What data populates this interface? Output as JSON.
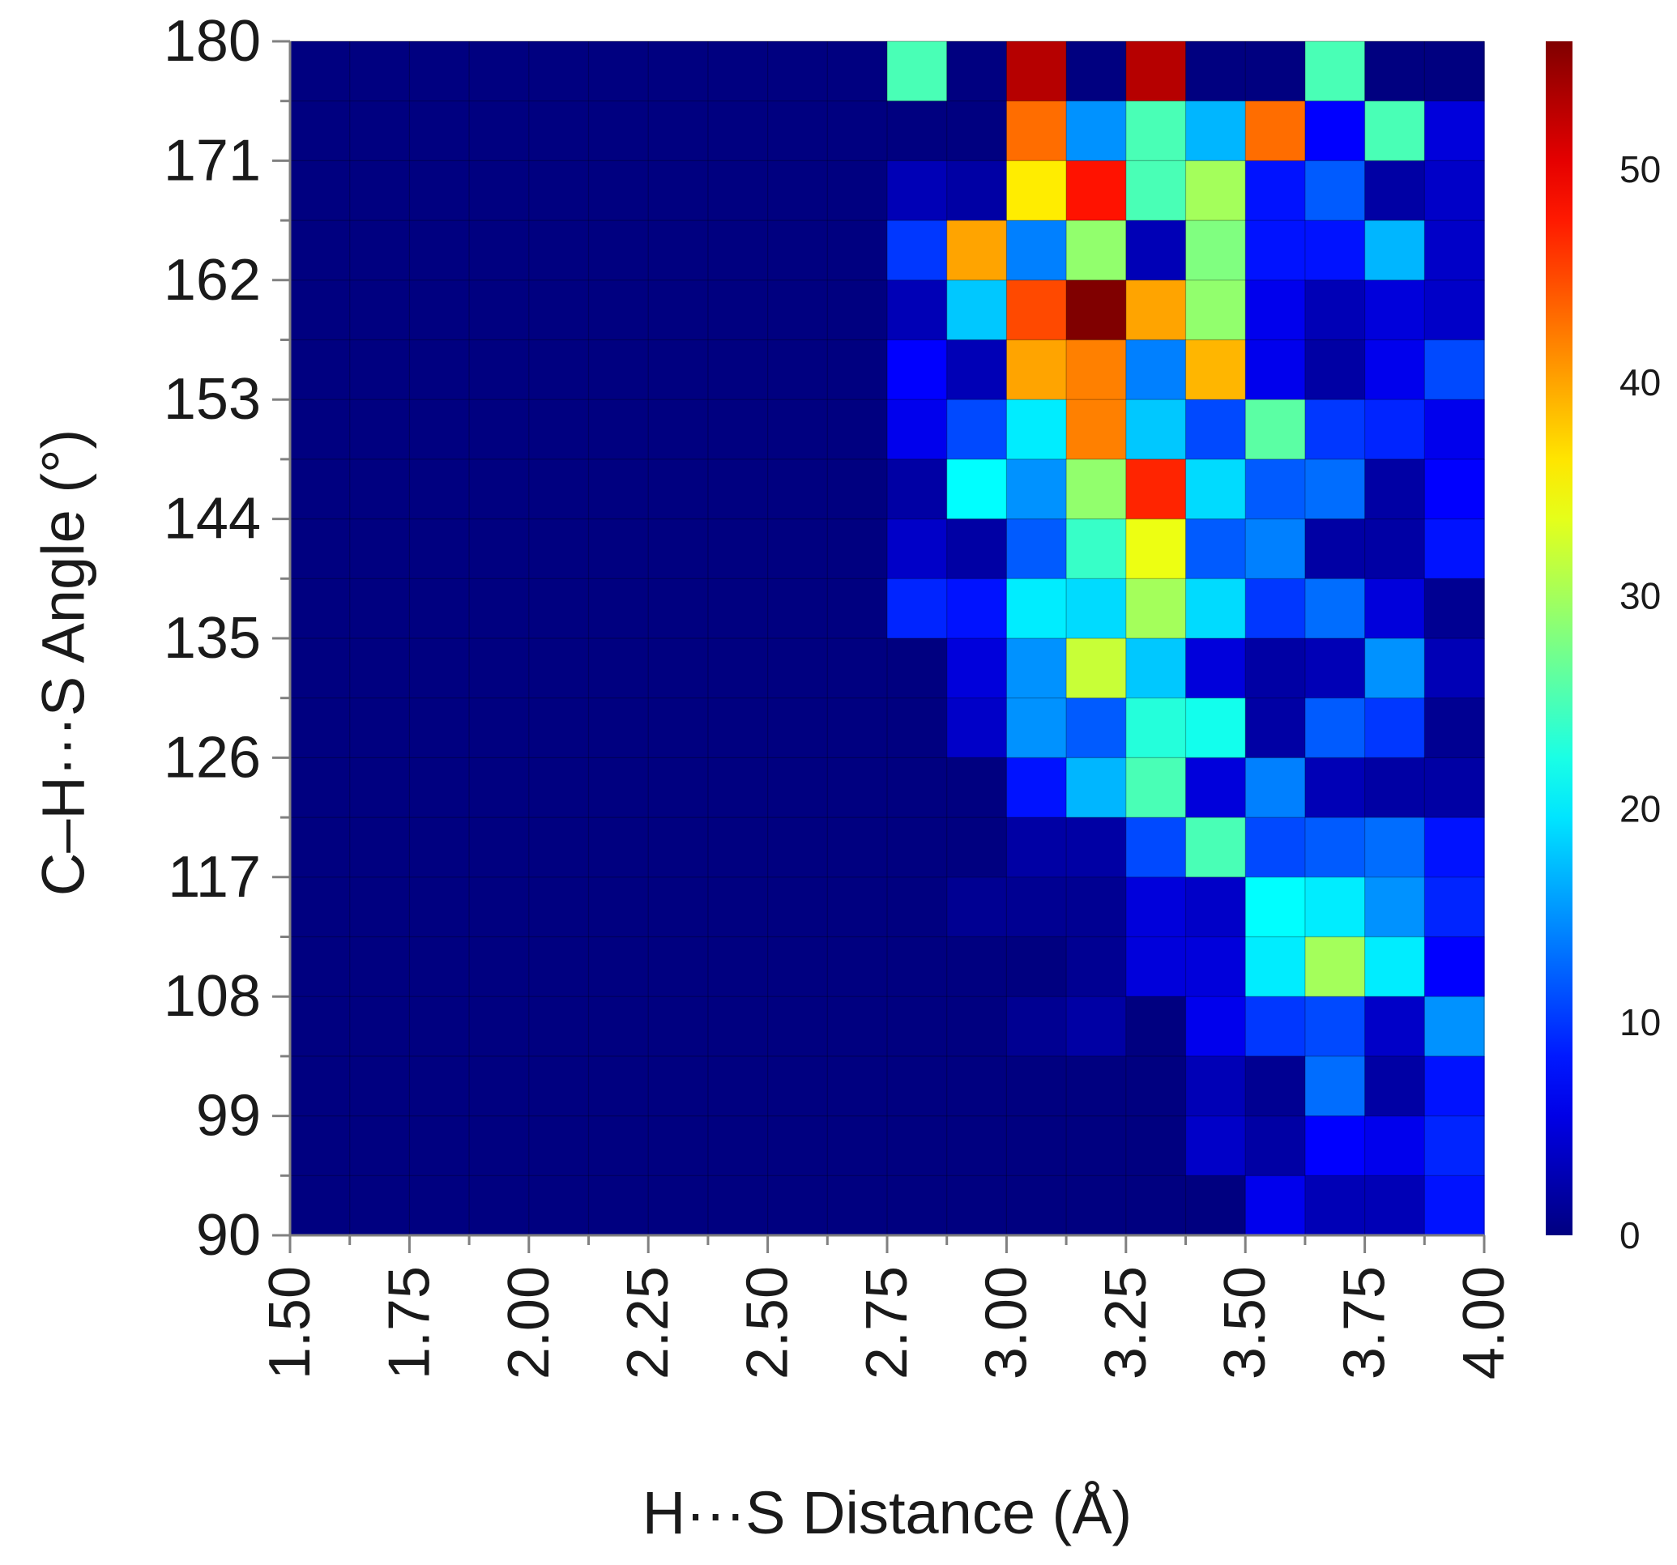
{
  "chart_data": {
    "type": "heatmap",
    "title": "",
    "xlabel": "H···S Distance (Å)",
    "ylabel": "C–H···S Angle (°)",
    "xlim": [
      1.5,
      4.0
    ],
    "ylim": [
      90,
      180
    ],
    "x_ticks": [
      "1.50",
      "1.75",
      "2.00",
      "2.25",
      "2.50",
      "2.75",
      "3.00",
      "3.25",
      "3.50",
      "3.75",
      "4.00"
    ],
    "y_ticks": [
      "90",
      "99",
      "108",
      "117",
      "126",
      "135",
      "144",
      "153",
      "162",
      "171",
      "180"
    ],
    "x_bins": 20,
    "y_bins": 20,
    "colorbar": {
      "range": [
        0,
        56
      ],
      "ticks": [
        "0",
        "10",
        "20",
        "30",
        "40",
        "50"
      ],
      "colormap": "jet"
    },
    "grid": true,
    "rows_top_to_bottom": [
      [
        0,
        0,
        0,
        0,
        0,
        0,
        0,
        0,
        0,
        0,
        25,
        0,
        53,
        0,
        53,
        0,
        0,
        25,
        0,
        0
      ],
      [
        0,
        0,
        0,
        0,
        0,
        0,
        0,
        0,
        0,
        0,
        0,
        0,
        43,
        15,
        25,
        17,
        43,
        7,
        25,
        5
      ],
      [
        0,
        0,
        0,
        0,
        0,
        0,
        0,
        0,
        0,
        0,
        3,
        2,
        36,
        48,
        25,
        30,
        8,
        12,
        2,
        4
      ],
      [
        0,
        0,
        0,
        0,
        0,
        0,
        0,
        0,
        0,
        0,
        10,
        40,
        14,
        29,
        3,
        28,
        8,
        8,
        17,
        4
      ],
      [
        0,
        0,
        0,
        0,
        0,
        0,
        0,
        0,
        0,
        0,
        3,
        18,
        45,
        56,
        40,
        29,
        6,
        3,
        5,
        4
      ],
      [
        0,
        0,
        0,
        0,
        0,
        0,
        0,
        0,
        0,
        0,
        7,
        3,
        40,
        42,
        14,
        39,
        6,
        2,
        6,
        11
      ],
      [
        0,
        0,
        0,
        0,
        0,
        0,
        0,
        0,
        0,
        0,
        6,
        11,
        20,
        42,
        18,
        11,
        26,
        10,
        9,
        6
      ],
      [
        0,
        0,
        0,
        0,
        0,
        0,
        0,
        0,
        0,
        0,
        2,
        21,
        15,
        29,
        47,
        19,
        12,
        13,
        2,
        7
      ],
      [
        0,
        0,
        0,
        0,
        0,
        0,
        0,
        0,
        0,
        0,
        4,
        2,
        12,
        24,
        34,
        12,
        14,
        2,
        2,
        8
      ],
      [
        0,
        0,
        0,
        0,
        0,
        0,
        0,
        0,
        0,
        0,
        9,
        8,
        20,
        19,
        30,
        19,
        10,
        13,
        5,
        1
      ],
      [
        0,
        0,
        0,
        0,
        0,
        0,
        0,
        0,
        0,
        0,
        0,
        5,
        15,
        32,
        18,
        5,
        2,
        3,
        15,
        3
      ],
      [
        0,
        0,
        0,
        0,
        0,
        0,
        0,
        0,
        0,
        0,
        0,
        4,
        15,
        12,
        23,
        22,
        2,
        12,
        10,
        1
      ],
      [
        0,
        0,
        0,
        0,
        0,
        0,
        0,
        0,
        0,
        0,
        0,
        0,
        8,
        17,
        25,
        5,
        14,
        3,
        2,
        2
      ],
      [
        0,
        0,
        0,
        0,
        0,
        0,
        0,
        0,
        0,
        0,
        0,
        0,
        2,
        2,
        11,
        25,
        11,
        12,
        13,
        8
      ],
      [
        0,
        0,
        0,
        0,
        0,
        0,
        0,
        0,
        0,
        0,
        0,
        1,
        1,
        1,
        5,
        4,
        21,
        20,
        15,
        9
      ],
      [
        0,
        0,
        0,
        0,
        0,
        0,
        0,
        0,
        0,
        0,
        0,
        0,
        0,
        1,
        5,
        5,
        20,
        30,
        20,
        7
      ],
      [
        0,
        0,
        0,
        0,
        0,
        0,
        0,
        0,
        0,
        0,
        0,
        0,
        1,
        2,
        0,
        6,
        10,
        11,
        4,
        15
      ],
      [
        0,
        0,
        0,
        0,
        0,
        0,
        0,
        0,
        0,
        0,
        0,
        0,
        0,
        0,
        0,
        3,
        1,
        13,
        2,
        8
      ],
      [
        0,
        0,
        0,
        0,
        0,
        0,
        0,
        0,
        0,
        0,
        0,
        0,
        0,
        0,
        0,
        4,
        2,
        7,
        6,
        9
      ],
      [
        0,
        0,
        0,
        0,
        0,
        0,
        0,
        0,
        0,
        0,
        0,
        0,
        0,
        0,
        0,
        0,
        6,
        3,
        3,
        8
      ]
    ]
  }
}
